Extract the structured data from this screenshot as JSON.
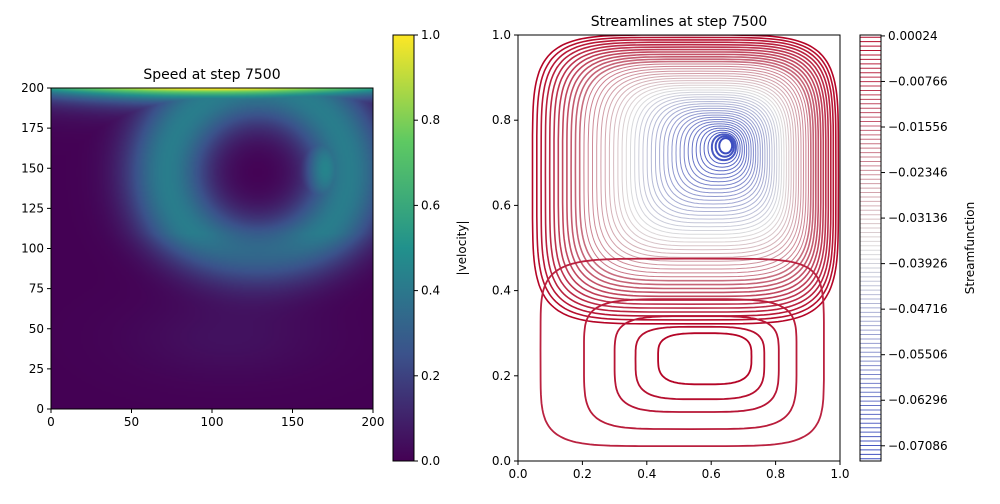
{
  "chart_data": [
    {
      "type": "heatmap",
      "title": "Speed at step 7500",
      "xlabel": "",
      "ylabel": "",
      "xlim": [
        0,
        200
      ],
      "ylim": [
        0,
        200
      ],
      "xticks": [
        "0",
        "50",
        "100",
        "150",
        "200"
      ],
      "yticks": [
        "0",
        "25",
        "50",
        "75",
        "100",
        "125",
        "150",
        "175",
        "200"
      ],
      "colormap": "viridis",
      "colorbar": {
        "label": "|velocity|",
        "range": [
          0.0,
          1.0
        ],
        "ticks": [
          "0.0",
          "0.2",
          "0.4",
          "0.6",
          "0.8",
          "1.0"
        ]
      },
      "features": {
        "lid_speed_at_top": 1.0,
        "vortex_center": [
          128,
          148
        ],
        "vortex_ring_speed": 0.42
      }
    },
    {
      "type": "contour",
      "title": "Streamlines at step 7500",
      "xlabel": "",
      "ylabel": "",
      "xlim": [
        0.0,
        1.0
      ],
      "ylim": [
        0.0,
        1.0
      ],
      "xticks": [
        "0.0",
        "0.2",
        "0.4",
        "0.6",
        "0.8",
        "1.0"
      ],
      "yticks": [
        "0.0",
        "0.2",
        "0.4",
        "0.6",
        "0.8",
        "1.0"
      ],
      "colormap": "coolwarm",
      "colorbar": {
        "label": "Streamfunction",
        "ticks": [
          "0.00024",
          "−0.00766",
          "−0.01556",
          "−0.02346",
          "−0.03136",
          "−0.03926",
          "−0.04716",
          "−0.05506",
          "−0.06296",
          "−0.07086"
        ]
      },
      "primary_vortex_center": [
        0.645,
        0.74
      ],
      "secondary_vortex_center": [
        0.58,
        0.245
      ],
      "level_range": [
        -0.0735,
        0.0004
      ]
    }
  ],
  "colors": {
    "viridis": [
      "#440154",
      "#3b528b",
      "#21918c",
      "#5ec962",
      "#fde725"
    ],
    "coolwarm_blue": "#3b4cc0",
    "coolwarm_white": "#dddddd",
    "coolwarm_red": "#b40426"
  }
}
